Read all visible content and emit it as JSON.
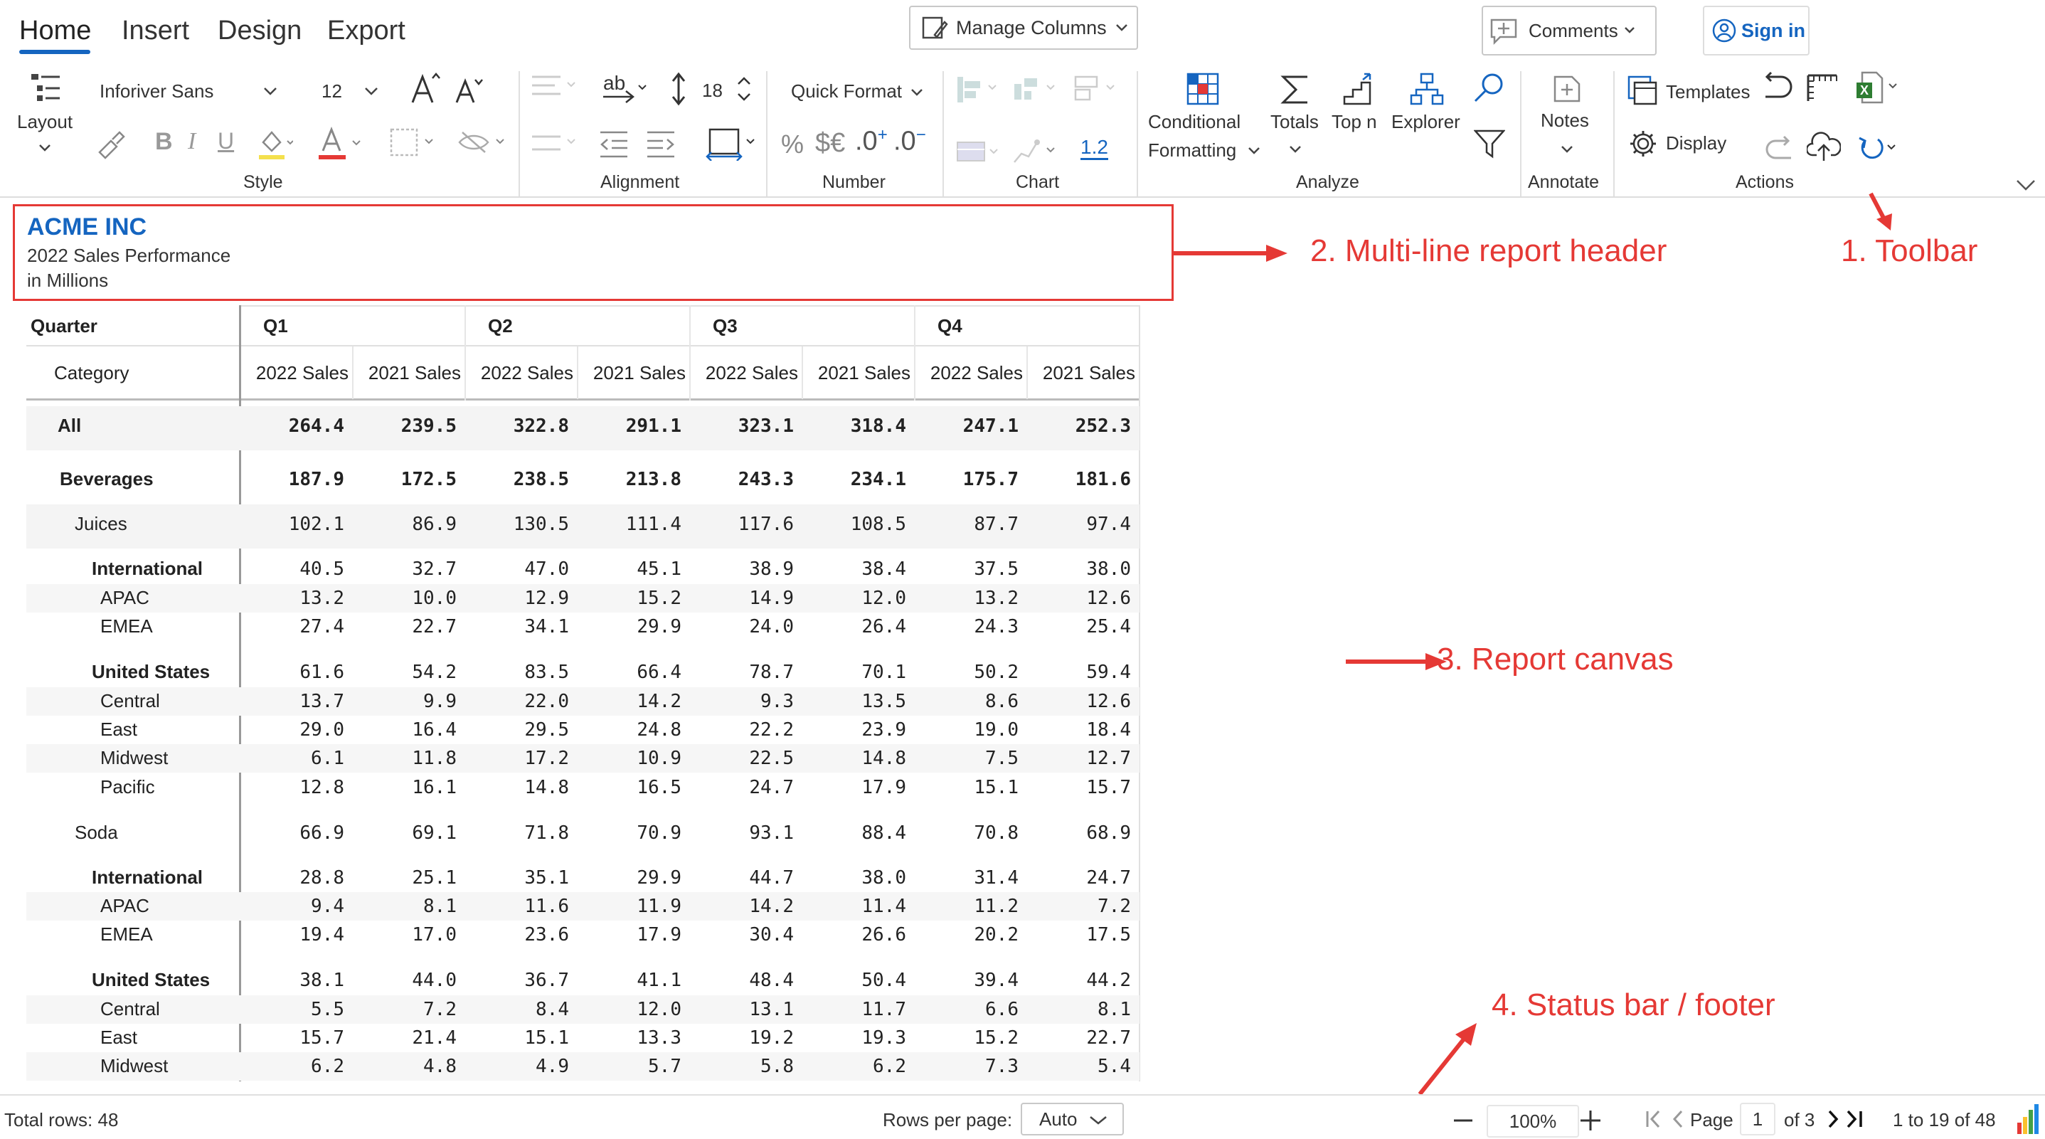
{
  "ribbon": {
    "tabs": [
      "Home",
      "Insert",
      "Design",
      "Export"
    ],
    "manage_columns": "Manage Columns",
    "comments": "Comments",
    "sign_in": "Sign in",
    "layout_label": "Layout",
    "font_family": "Inforiver Sans",
    "font_size": "12",
    "row_height": "18",
    "quick_format": "Quick Format",
    "percent_glyph": "%",
    "currency_glyph": "$€",
    "decimal_inc": ".0",
    "decimal_dec": ".0",
    "chart_value": "1.2",
    "conditional": "Conditional",
    "formatting": "Formatting",
    "totals": "Totals",
    "top_n": "Top n",
    "explorer": "Explorer",
    "notes": "Notes",
    "templates": "Templates",
    "display": "Display",
    "groups": [
      "Style",
      "Alignment",
      "Number",
      "Chart",
      "Analyze",
      "Annotate",
      "Actions"
    ],
    "accent": "#1565c0"
  },
  "header": {
    "title": "ACME INC",
    "line1": "2022 Sales Performance",
    "line2": "in Millions",
    "title_color": "#1565c0"
  },
  "annotations": {
    "toolbar": "1. Toolbar",
    "header": "2. Multi-line report header",
    "canvas": "3. Report canvas",
    "status": "4. Status bar / footer",
    "color": "#e53935"
  },
  "table": {
    "quarter_label": "Quarter",
    "category_label": "Category",
    "quarters": [
      "Q1",
      "Q2",
      "Q3",
      "Q4"
    ],
    "measures": [
      "2022 Sales",
      "2021 Sales"
    ],
    "rows": [
      {
        "label": "All",
        "level": 0,
        "bold": true,
        "values": [
          "264.4",
          "239.5",
          "322.8",
          "291.1",
          "323.1",
          "318.4",
          "247.1",
          "252.3"
        ]
      },
      {
        "label": "Beverages",
        "level": 1,
        "bold": true,
        "values": [
          "187.9",
          "172.5",
          "238.5",
          "213.8",
          "243.3",
          "234.1",
          "175.7",
          "181.6"
        ]
      },
      {
        "label": "Juices",
        "level": 2,
        "bold": false,
        "values": [
          "102.1",
          "86.9",
          "130.5",
          "111.4",
          "117.6",
          "108.5",
          "87.7",
          "97.4"
        ]
      },
      {
        "label": "International",
        "level": 3,
        "bold": false,
        "values": [
          "40.5",
          "32.7",
          "47.0",
          "45.1",
          "38.9",
          "38.4",
          "37.5",
          "38.0"
        ]
      },
      {
        "label": "APAC",
        "level": 4,
        "bold": false,
        "values": [
          "13.2",
          "10.0",
          "12.9",
          "15.2",
          "14.9",
          "12.0",
          "13.2",
          "12.6"
        ]
      },
      {
        "label": "EMEA",
        "level": 4,
        "bold": false,
        "values": [
          "27.4",
          "22.7",
          "34.1",
          "29.9",
          "24.0",
          "26.4",
          "24.3",
          "25.4"
        ]
      },
      {
        "label": "United States",
        "level": 3,
        "bold": false,
        "values": [
          "61.6",
          "54.2",
          "83.5",
          "66.4",
          "78.7",
          "70.1",
          "50.2",
          "59.4"
        ]
      },
      {
        "label": "Central",
        "level": 4,
        "bold": false,
        "values": [
          "13.7",
          "9.9",
          "22.0",
          "14.2",
          "9.3",
          "13.5",
          "8.6",
          "12.6"
        ]
      },
      {
        "label": "East",
        "level": 4,
        "bold": false,
        "values": [
          "29.0",
          "16.4",
          "29.5",
          "24.8",
          "22.2",
          "23.9",
          "19.0",
          "18.4"
        ]
      },
      {
        "label": "Midwest",
        "level": 4,
        "bold": false,
        "values": [
          "6.1",
          "11.8",
          "17.2",
          "10.9",
          "22.5",
          "14.8",
          "7.5",
          "12.7"
        ]
      },
      {
        "label": "Pacific",
        "level": 4,
        "bold": false,
        "values": [
          "12.8",
          "16.1",
          "14.8",
          "16.5",
          "24.7",
          "17.9",
          "15.1",
          "15.7"
        ]
      },
      {
        "label": "Soda",
        "level": 2,
        "bold": false,
        "values": [
          "66.9",
          "69.1",
          "71.8",
          "70.9",
          "93.1",
          "88.4",
          "70.8",
          "68.9"
        ]
      },
      {
        "label": "International",
        "level": 3,
        "bold": false,
        "values": [
          "28.8",
          "25.1",
          "35.1",
          "29.9",
          "44.7",
          "38.0",
          "31.4",
          "24.7"
        ]
      },
      {
        "label": "APAC",
        "level": 4,
        "bold": false,
        "values": [
          "9.4",
          "8.1",
          "11.6",
          "11.9",
          "14.2",
          "11.4",
          "11.2",
          "7.2"
        ]
      },
      {
        "label": "EMEA",
        "level": 4,
        "bold": false,
        "values": [
          "19.4",
          "17.0",
          "23.6",
          "17.9",
          "30.4",
          "26.6",
          "20.2",
          "17.5"
        ]
      },
      {
        "label": "United States",
        "level": 3,
        "bold": false,
        "values": [
          "38.1",
          "44.0",
          "36.7",
          "41.1",
          "48.4",
          "50.4",
          "39.4",
          "44.2"
        ]
      },
      {
        "label": "Central",
        "level": 4,
        "bold": false,
        "values": [
          "5.5",
          "7.2",
          "8.4",
          "12.0",
          "13.1",
          "11.7",
          "6.6",
          "8.1"
        ]
      },
      {
        "label": "East",
        "level": 4,
        "bold": false,
        "values": [
          "15.7",
          "21.4",
          "15.1",
          "13.3",
          "19.2",
          "19.3",
          "15.2",
          "22.7"
        ]
      },
      {
        "label": "Midwest",
        "level": 4,
        "bold": false,
        "values": [
          "6.2",
          "4.8",
          "4.9",
          "5.7",
          "5.8",
          "6.2",
          "7.3",
          "5.4"
        ]
      }
    ]
  },
  "footer": {
    "total_rows": "Total rows: 48",
    "rows_per_page_label": "Rows per page:",
    "rows_per_page_value": "Auto",
    "zoom": "100%",
    "page_label": "Page",
    "page_value": "1",
    "page_of": "of 3",
    "range": "1  to  19  of  48"
  }
}
